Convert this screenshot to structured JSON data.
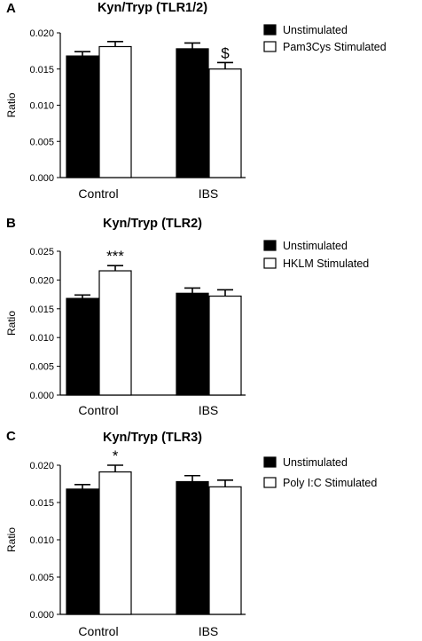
{
  "chart_data": [
    {
      "panel": "A",
      "type": "bar",
      "title": "Kyn/Tryp (TLR1/2)",
      "xlabel": "",
      "ylabel": "Ratio",
      "ylim": [
        0,
        0.02
      ],
      "yticks": [
        "0.000",
        "0.005",
        "0.010",
        "0.015",
        "0.020"
      ],
      "categories": [
        "Control",
        "IBS"
      ],
      "series": [
        {
          "name": "Unstimulated",
          "color": "#000000",
          "values": [
            0.0168,
            0.0178
          ],
          "errors": [
            0.0006,
            0.0008
          ]
        },
        {
          "name": "Pam3Cys Stimulated",
          "color": "#ffffff",
          "values": [
            0.0181,
            0.015
          ],
          "errors": [
            0.0007,
            0.0009
          ]
        }
      ],
      "annotations": [
        {
          "category": "IBS",
          "series": 1,
          "text": "$"
        }
      ],
      "legend": "top-right",
      "grid": false
    },
    {
      "panel": "B",
      "type": "bar",
      "title": "Kyn/Tryp (TLR2)",
      "xlabel": "",
      "ylabel": "Ratio",
      "ylim": [
        0,
        0.025
      ],
      "yticks": [
        "0.000",
        "0.005",
        "0.010",
        "0.015",
        "0.020",
        "0.025"
      ],
      "categories": [
        "Control",
        "IBS"
      ],
      "series": [
        {
          "name": "Unstimulated",
          "color": "#000000",
          "values": [
            0.0168,
            0.0177
          ],
          "errors": [
            0.0006,
            0.0009
          ]
        },
        {
          "name": "HKLM Stimulated",
          "color": "#ffffff",
          "values": [
            0.0216,
            0.0172
          ],
          "errors": [
            0.0009,
            0.0011
          ]
        }
      ],
      "annotations": [
        {
          "category": "Control",
          "series": 1,
          "text": "***"
        }
      ],
      "legend": "top-right",
      "grid": false
    },
    {
      "panel": "C",
      "type": "bar",
      "title": "Kyn/Tryp (TLR3)",
      "xlabel": "",
      "ylabel": "Ratio",
      "ylim": [
        0,
        0.02
      ],
      "yticks": [
        "0.000",
        "0.005",
        "0.010",
        "0.015",
        "0.020"
      ],
      "categories": [
        "Control",
        "IBS"
      ],
      "series": [
        {
          "name": "Unstimulated",
          "color": "#000000",
          "values": [
            0.0168,
            0.0178
          ],
          "errors": [
            0.0006,
            0.0008
          ]
        },
        {
          "name": "Poly I:C Stimulated",
          "color": "#ffffff",
          "values": [
            0.0191,
            0.0171
          ],
          "errors": [
            0.0009,
            0.0009
          ]
        }
      ],
      "annotations": [
        {
          "category": "Control",
          "series": 1,
          "text": "*"
        }
      ],
      "legend": "top-right",
      "grid": false
    }
  ]
}
